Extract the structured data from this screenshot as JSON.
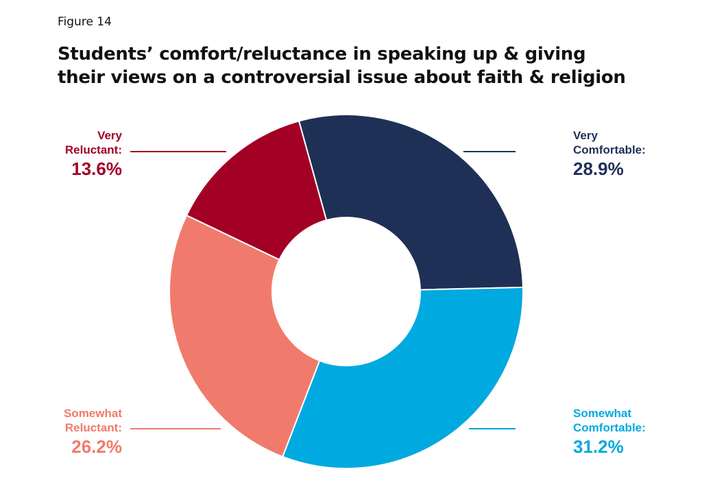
{
  "figure_label": "Figure 14",
  "title_lines": [
    "Students’ comfort/reluctance in speaking up & giving",
    "their views on a controversial issue about faith & religion"
  ],
  "chart_data": {
    "type": "pie",
    "title": "Students’ comfort/reluctance in speaking up & giving their views on a controversial issue about faith & religion",
    "slices": [
      {
        "label_lines": [
          "Very",
          "Comfortable:"
        ],
        "value": 28.9,
        "value_text": "28.9%",
        "color": "#1f3057",
        "side": "right-top"
      },
      {
        "label_lines": [
          "Somewhat",
          "Comfortable:"
        ],
        "value": 31.2,
        "value_text": "31.2%",
        "color": "#00a9e0",
        "side": "right-bottom"
      },
      {
        "label_lines": [
          "Somewhat",
          "Reluctant:"
        ],
        "value": 26.2,
        "value_text": "26.2%",
        "color": "#f07b6c",
        "side": "left-bottom"
      },
      {
        "label_lines": [
          "Very",
          "Reluctant:"
        ],
        "value": 13.6,
        "value_text": "13.6%",
        "color": "#a30026",
        "side": "left-top"
      }
    ],
    "donut": true
  }
}
